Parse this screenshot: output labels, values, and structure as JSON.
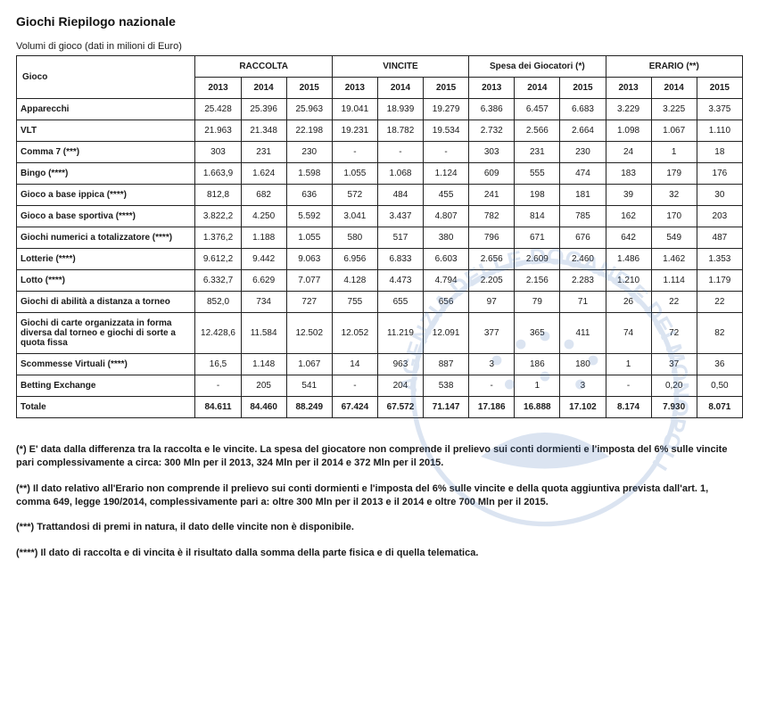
{
  "title": "Giochi Riepilogo nazionale",
  "subtitle": "Volumi di gioco (dati in milioni di Euro)",
  "table": {
    "corner": "Gioco",
    "groups": [
      "RACCOLTA",
      "VINCITE",
      "Spesa dei Giocatori (*)",
      "ERARIO (**)"
    ],
    "years": [
      "2013",
      "2014",
      "2015"
    ],
    "rows": [
      {
        "label": "Apparecchi",
        "cells": [
          "25.428",
          "25.396",
          "25.963",
          "19.041",
          "18.939",
          "19.279",
          "6.386",
          "6.457",
          "6.683",
          "3.229",
          "3.225",
          "3.375"
        ]
      },
      {
        "label": "VLT",
        "cells": [
          "21.963",
          "21.348",
          "22.198",
          "19.231",
          "18.782",
          "19.534",
          "2.732",
          "2.566",
          "2.664",
          "1.098",
          "1.067",
          "1.110"
        ]
      },
      {
        "label": "Comma 7 (***)",
        "cells": [
          "303",
          "231",
          "230",
          "-",
          "-",
          "-",
          "303",
          "231",
          "230",
          "24",
          "1",
          "18"
        ]
      },
      {
        "label": "Bingo (****)",
        "cells": [
          "1.663,9",
          "1.624",
          "1.598",
          "1.055",
          "1.068",
          "1.124",
          "609",
          "555",
          "474",
          "183",
          "179",
          "176"
        ]
      },
      {
        "label": "Gioco a base ippica (****)",
        "cells": [
          "812,8",
          "682",
          "636",
          "572",
          "484",
          "455",
          "241",
          "198",
          "181",
          "39",
          "32",
          "30"
        ]
      },
      {
        "label": "Gioco a base sportiva (****)",
        "cells": [
          "3.822,2",
          "4.250",
          "5.592",
          "3.041",
          "3.437",
          "4.807",
          "782",
          "814",
          "785",
          "162",
          "170",
          "203"
        ]
      },
      {
        "label": "Giochi numerici a totalizzatore (****)",
        "cells": [
          "1.376,2",
          "1.188",
          "1.055",
          "580",
          "517",
          "380",
          "796",
          "671",
          "676",
          "642",
          "549",
          "487"
        ]
      },
      {
        "label": "Lotterie (****)",
        "cells": [
          "9.612,2",
          "9.442",
          "9.063",
          "6.956",
          "6.833",
          "6.603",
          "2.656",
          "2.609",
          "2.460",
          "1.486",
          "1.462",
          "1.353"
        ]
      },
      {
        "label": "Lotto (****)",
        "cells": [
          "6.332,7",
          "6.629",
          "7.077",
          "4.128",
          "4.473",
          "4.794",
          "2.205",
          "2.156",
          "2.283",
          "1.210",
          "1.114",
          "1.179"
        ]
      },
      {
        "label": "Giochi di abilità a distanza a torneo",
        "cells": [
          "852,0",
          "734",
          "727",
          "755",
          "655",
          "656",
          "97",
          "79",
          "71",
          "26",
          "22",
          "22"
        ]
      },
      {
        "label": "Giochi di carte organizzata in forma diversa dal torneo e giochi di sorte a quota fissa",
        "cells": [
          "12.428,6",
          "11.584",
          "12.502",
          "12.052",
          "11.219",
          "12.091",
          "377",
          "365",
          "411",
          "74",
          "72",
          "82"
        ]
      },
      {
        "label": "Scommesse Virtuali (****)",
        "cells": [
          "16,5",
          "1.148",
          "1.067",
          "14",
          "963",
          "887",
          "3",
          "186",
          "180",
          "1",
          "37",
          "36"
        ]
      },
      {
        "label": "Betting Exchange",
        "cells": [
          "-",
          "205",
          "541",
          "-",
          "204",
          "538",
          "-",
          "1",
          "3",
          "-",
          "0,20",
          "0,50"
        ]
      }
    ],
    "total": {
      "label": "Totale",
      "cells": [
        "84.611",
        "84.460",
        "88.249",
        "67.424",
        "67.572",
        "71.147",
        "17.186",
        "16.888",
        "17.102",
        "8.174",
        "7.930",
        "8.071"
      ]
    }
  },
  "notes": [
    "(*) E' data dalla differenza tra la raccolta e le vincite. La spesa del giocatore non comprende il prelievo sui conti dormienti e l'imposta del 6% sulle vincite pari complessivamente a circa: 300 Mln per il 2013, 324 Mln per il 2014 e 372 Mln per il 2015.",
    "(**) Il dato relativo all'Erario non comprende il prelievo sui conti dormienti e l'imposta del 6% sulle vincite e della quota aggiuntiva prevista dall'art. 1, comma 649, legge 190/2014, complessivamente pari a: oltre  300 Mln per il 2013 e il 2014 e oltre 700 Mln per il 2015.",
    "(***) Trattandosi di premi in natura, il dato delle vincite non è disponibile.",
    "(****) Il dato di raccolta e di vincita è il risultato dalla somma della parte fisica e di quella telematica."
  ],
  "watermark_text": "AGENZIA DELLE DOGANE E DEI MONOPOLI",
  "colors": {
    "border": "#222222",
    "text": "#1a1a1a",
    "watermark": "#3b6fb5"
  }
}
